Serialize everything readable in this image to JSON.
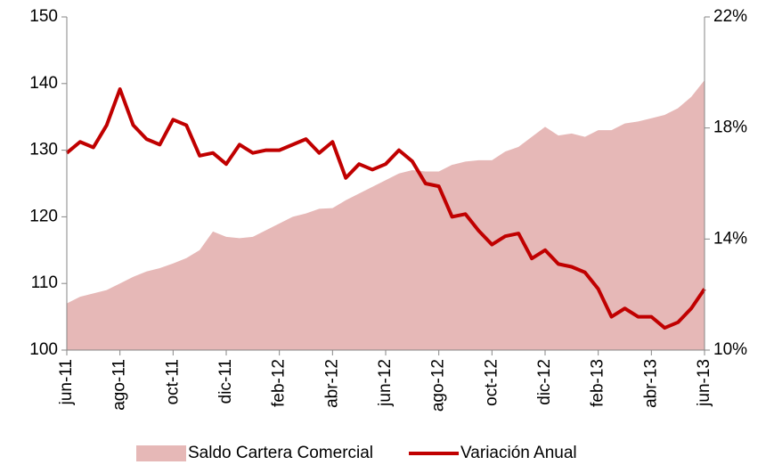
{
  "chart_data": {
    "type": "area-line",
    "categories": [
      "jun-11",
      null,
      null,
      null,
      "ago-11",
      null,
      null,
      null,
      "oct-11",
      null,
      null,
      null,
      "dic-11",
      null,
      null,
      null,
      "feb-12",
      null,
      null,
      null,
      "abr-12",
      null,
      null,
      null,
      "jun-12",
      null,
      null,
      null,
      "ago-12",
      null,
      null,
      null,
      "oct-12",
      null,
      null,
      null,
      "dic-12",
      null,
      null,
      null,
      "feb-13",
      null,
      null,
      null,
      "abr-13",
      null,
      null,
      null,
      "jun-13"
    ],
    "series": [
      {
        "name": "Saldo Cartera Comercial",
        "type": "area",
        "color": "#e6b8b7",
        "axis": "y",
        "values": [
          107,
          108,
          108.5,
          109,
          110,
          111,
          111.8,
          112.3,
          113,
          113.8,
          115,
          117.8,
          117,
          116.8,
          117,
          118,
          119,
          120,
          120.5,
          121.2,
          121.3,
          122.5,
          123.5,
          124.5,
          125.5,
          126.5,
          127,
          126.8,
          126.8,
          127.8,
          128.3,
          128.5,
          128.5,
          129.8,
          130.5,
          132,
          133.5,
          132.2,
          132.5,
          132,
          133,
          133,
          134,
          134.3,
          134.8,
          135.3,
          136.3,
          138,
          140.5
        ]
      },
      {
        "name": "Variación Anual",
        "type": "line",
        "color": "#c00000",
        "axis": "y2",
        "values": [
          17.1,
          17.5,
          17.3,
          18.1,
          19.4,
          18.1,
          17.6,
          17.4,
          18.3,
          18.1,
          17.0,
          17.1,
          16.7,
          17.4,
          17.1,
          17.2,
          17.2,
          17.4,
          17.6,
          17.1,
          17.5,
          16.2,
          16.7,
          16.5,
          16.7,
          17.2,
          16.8,
          16.0,
          15.9,
          14.8,
          14.9,
          14.3,
          13.8,
          14.1,
          14.2,
          13.3,
          13.6,
          13.1,
          13.0,
          12.8,
          12.2,
          11.2,
          11.5,
          11.2,
          11.2,
          10.8,
          11.0,
          11.5,
          12.2
        ]
      }
    ],
    "ylim": [
      100,
      150
    ],
    "yticks": [
      100,
      110,
      120,
      130,
      140,
      150
    ],
    "y2lim": [
      10,
      22
    ],
    "y2ticks": [
      {
        "value": 10,
        "label": "10%"
      },
      {
        "value": 14,
        "label": "14%"
      },
      {
        "value": 18,
        "label": "18%"
      },
      {
        "value": 22,
        "label": "22%"
      }
    ],
    "legend": "bottom",
    "grid": false
  }
}
